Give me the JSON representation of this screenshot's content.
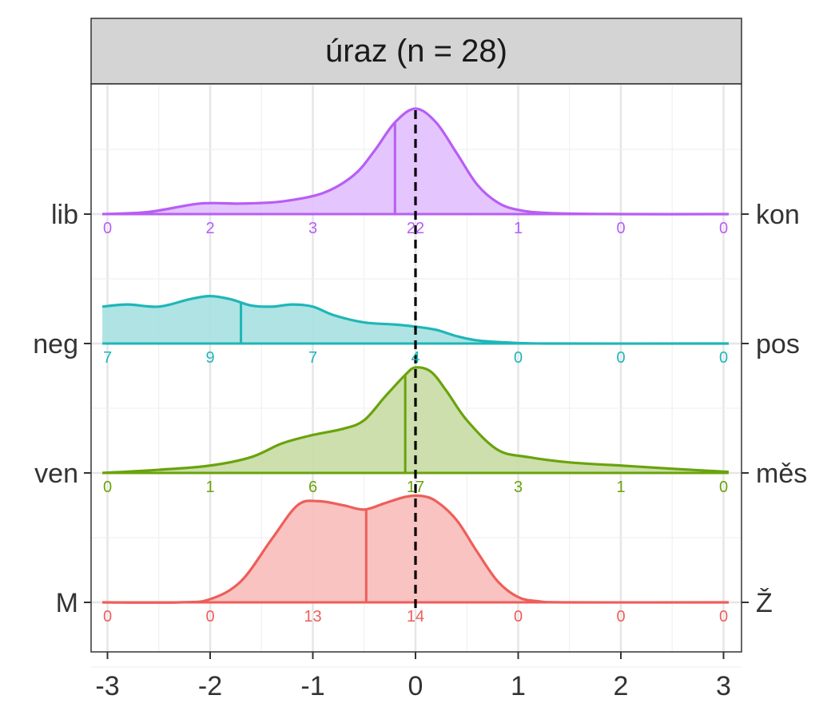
{
  "chart_data": {
    "type": "ridgeline-density",
    "title": "úraz (n = 28)",
    "xlim": [
      -3.1,
      3.1
    ],
    "x_ticks": [
      -3,
      -2,
      -1,
      0,
      1,
      2,
      3
    ],
    "x_tick_labels": [
      "-3",
      "-2",
      "-1",
      "0",
      "1",
      "2",
      "3"
    ],
    "reference_line": {
      "x": 0,
      "style": "dashed",
      "color": "#000000"
    },
    "count_positions": [
      -3,
      -2,
      -1,
      0,
      1,
      2,
      3
    ],
    "series": [
      {
        "left_label": "lib",
        "right_label": "kon",
        "color": "#b75ef5",
        "fill": "#e2bffd",
        "counts": [
          "0",
          "2",
          "3",
          "22",
          "1",
          "0",
          "0"
        ],
        "marker_x": -0.2,
        "density": [
          [
            -3.05,
            0.0
          ],
          [
            -2.6,
            0.02
          ],
          [
            -2.1,
            0.1
          ],
          [
            -1.7,
            0.1
          ],
          [
            -1.3,
            0.12
          ],
          [
            -0.9,
            0.2
          ],
          [
            -0.6,
            0.37
          ],
          [
            -0.4,
            0.6
          ],
          [
            -0.2,
            0.87
          ],
          [
            0.0,
            1.0
          ],
          [
            0.2,
            0.87
          ],
          [
            0.4,
            0.58
          ],
          [
            0.6,
            0.28
          ],
          [
            0.8,
            0.11
          ],
          [
            1.0,
            0.04
          ],
          [
            1.3,
            0.01
          ],
          [
            2.0,
            0.0
          ],
          [
            3.05,
            0.0
          ]
        ]
      },
      {
        "left_label": "neg",
        "right_label": "pos",
        "color": "#1fb6b8",
        "fill": "#a6e0e1",
        "counts": [
          "7",
          "9",
          "7",
          "4",
          "0",
          "0",
          "0"
        ],
        "marker_x": -1.7,
        "density": [
          [
            -3.05,
            0.35
          ],
          [
            -2.8,
            0.37
          ],
          [
            -2.5,
            0.35
          ],
          [
            -2.2,
            0.42
          ],
          [
            -2.0,
            0.45
          ],
          [
            -1.8,
            0.42
          ],
          [
            -1.6,
            0.36
          ],
          [
            -1.4,
            0.35
          ],
          [
            -1.2,
            0.37
          ],
          [
            -1.0,
            0.35
          ],
          [
            -0.8,
            0.27
          ],
          [
            -0.5,
            0.2
          ],
          [
            -0.2,
            0.18
          ],
          [
            0.0,
            0.16
          ],
          [
            0.2,
            0.13
          ],
          [
            0.4,
            0.07
          ],
          [
            0.6,
            0.03
          ],
          [
            0.9,
            0.01
          ],
          [
            1.3,
            0.0
          ],
          [
            3.05,
            0.0
          ]
        ]
      },
      {
        "left_label": "ven",
        "right_label": "měs",
        "color": "#6aa30c",
        "fill": "#c6dca4",
        "counts": [
          "0",
          "1",
          "6",
          "17",
          "3",
          "1",
          "0"
        ],
        "marker_x": -0.1,
        "density": [
          [
            -3.05,
            0.0
          ],
          [
            -2.5,
            0.03
          ],
          [
            -2.0,
            0.07
          ],
          [
            -1.6,
            0.15
          ],
          [
            -1.3,
            0.28
          ],
          [
            -1.0,
            0.36
          ],
          [
            -0.7,
            0.42
          ],
          [
            -0.5,
            0.5
          ],
          [
            -0.3,
            0.72
          ],
          [
            -0.1,
            0.93
          ],
          [
            0.0,
            1.0
          ],
          [
            0.15,
            0.96
          ],
          [
            0.3,
            0.78
          ],
          [
            0.5,
            0.5
          ],
          [
            0.8,
            0.22
          ],
          [
            1.1,
            0.15
          ],
          [
            1.5,
            0.1
          ],
          [
            2.0,
            0.07
          ],
          [
            2.5,
            0.04
          ],
          [
            3.05,
            0.01
          ]
        ]
      },
      {
        "left_label": "M",
        "right_label": "Ž",
        "color": "#ee5e5a",
        "fill": "#f7bcba",
        "counts": [
          "0",
          "0",
          "13",
          "14",
          "0",
          "0",
          "0"
        ],
        "marker_x": -0.48,
        "density": [
          [
            -3.05,
            0.0
          ],
          [
            -2.3,
            0.0
          ],
          [
            -2.0,
            0.03
          ],
          [
            -1.7,
            0.2
          ],
          [
            -1.4,
            0.6
          ],
          [
            -1.15,
            0.92
          ],
          [
            -0.95,
            0.96
          ],
          [
            -0.7,
            0.92
          ],
          [
            -0.5,
            0.88
          ],
          [
            -0.3,
            0.94
          ],
          [
            -0.1,
            1.0
          ],
          [
            0.05,
            1.01
          ],
          [
            0.2,
            0.96
          ],
          [
            0.4,
            0.78
          ],
          [
            0.6,
            0.48
          ],
          [
            0.8,
            0.2
          ],
          [
            1.0,
            0.05
          ],
          [
            1.2,
            0.01
          ],
          [
            1.5,
            0.0
          ],
          [
            3.05,
            0.0
          ]
        ]
      }
    ]
  }
}
